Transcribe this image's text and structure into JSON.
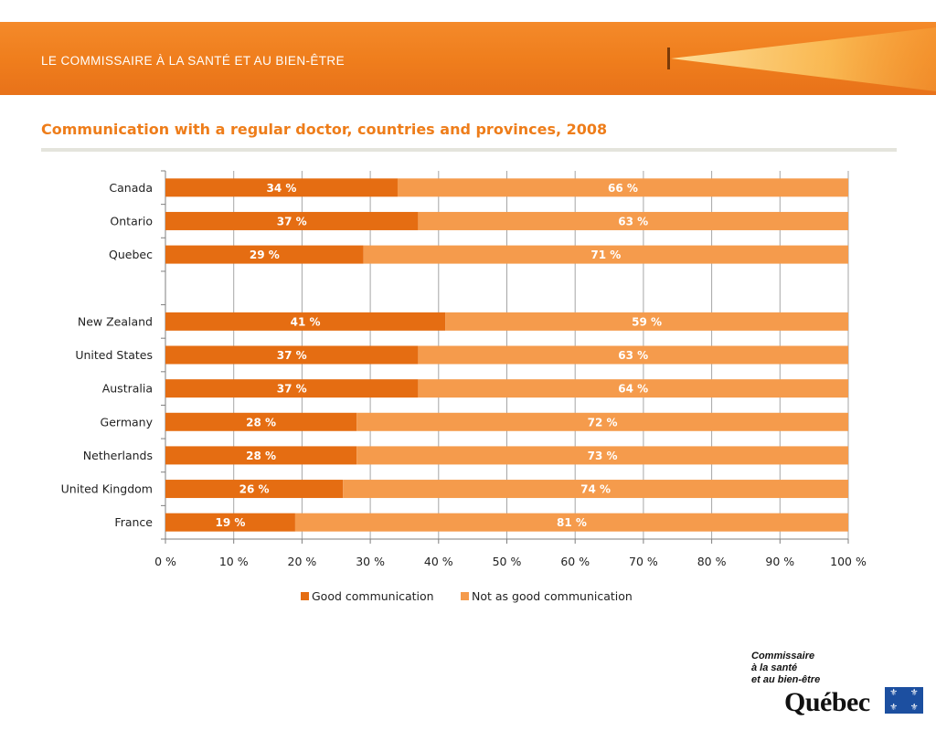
{
  "header": {
    "banner_title": "LE COMMISSAIRE À LA SANTÉ ET AU BIEN-ÊTRE"
  },
  "colors": {
    "banner": "#ef7d1c",
    "good": "#e56d12",
    "not_good": "#f59b4c",
    "title": "#ee7d1a"
  },
  "chart_data": {
    "type": "bar",
    "orientation": "horizontal",
    "stacked": true,
    "title": "Communication with a regular doctor, countries and provinces, 2008",
    "xlabel": "",
    "ylabel": "",
    "xlim": [
      0,
      100
    ],
    "x_ticks": [
      "0 %",
      "10 %",
      "20 %",
      "30 %",
      "40 %",
      "50 %",
      "60 %",
      "70 %",
      "80 %",
      "90 %",
      "100 %"
    ],
    "grid": true,
    "legend_position": "bottom",
    "categories": [
      "Canada",
      "Ontario",
      "Quebec",
      "",
      "New Zealand",
      "United States",
      "Australia",
      "Germany",
      "Netherlands",
      "United Kingdom",
      "France"
    ],
    "series": [
      {
        "name": "Good communication",
        "values": [
          34,
          37,
          29,
          null,
          41,
          37,
          37,
          28,
          28,
          26,
          19
        ],
        "labels": [
          "34 %",
          "37 %",
          "29 %",
          "",
          "41 %",
          "37 %",
          "37 %",
          "28 %",
          "28 %",
          "26 %",
          "19 %"
        ]
      },
      {
        "name": "Not as good communication",
        "values": [
          66,
          63,
          71,
          null,
          59,
          63,
          64,
          72,
          73,
          74,
          81
        ],
        "labels": [
          "66 %",
          "63 %",
          "71 %",
          "",
          "59 %",
          "63 %",
          "64 %",
          "72 %",
          "73 %",
          "74 %",
          "81 %"
        ]
      }
    ]
  },
  "footer": {
    "org_lines": [
      "Commissaire",
      "à la santé",
      "et au bien-être"
    ],
    "wordmark": "Québec",
    "flag_icon": "fleur-de-lis-icon",
    "fleur_symbol": "⚜"
  }
}
